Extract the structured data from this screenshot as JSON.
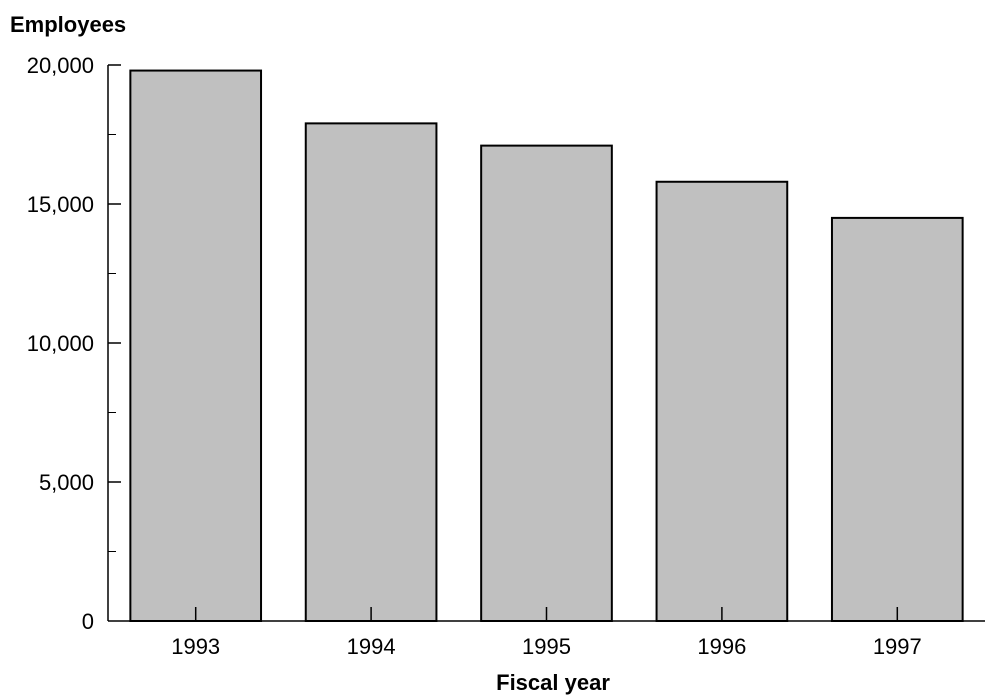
{
  "chart_data": {
    "type": "bar",
    "title": "",
    "ylabel": "Employees",
    "xlabel": "Fiscal year",
    "categories": [
      "1993",
      "1994",
      "1995",
      "1996",
      "1997"
    ],
    "values": [
      19800,
      17900,
      17100,
      15800,
      14500
    ],
    "ylim": [
      0,
      20000
    ],
    "y_ticks": [
      0,
      5000,
      10000,
      15000,
      20000
    ],
    "y_tick_labels": [
      "0",
      "5,000",
      "10,000",
      "15,000",
      "20,000"
    ],
    "y_minor_ticks": [
      2500,
      7500,
      12500,
      17500
    ],
    "grid": false,
    "legend": "none",
    "colors": {
      "bar_fill": "#c0c0c0",
      "bar_stroke": "#000000",
      "axis": "#000000"
    }
  }
}
